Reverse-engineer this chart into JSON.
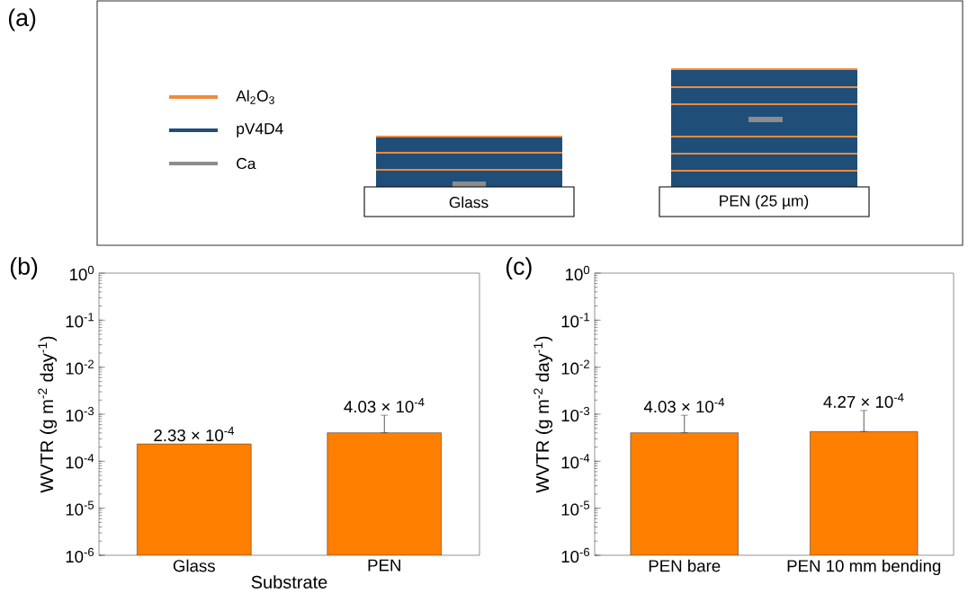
{
  "chart_data": [
    {
      "type": "other",
      "annotations": [
        "(a)",
        "Al$_{2}$O$_{3}$",
        "pV4D4",
        "Ca",
        "Glass",
        "PEN (25 µm)"
      ]
    },
    {
      "type": "bar",
      "title": "(b)",
      "categories": [
        "Glass",
        "PEN"
      ],
      "values": [
        0.000233,
        0.000403
      ],
      "color": "#ff7f00",
      "errors": [
        null,
        [
          0.000403,
          0.00095
        ]
      ],
      "value_labels": [
        "2.33 × 10$^{-4}$",
        "4.03 × 10$^{-4}$"
      ],
      "log": true,
      "ylim": [
        1e-06,
        1
      ],
      "yticks": [
        {
          "value": 1e-06,
          "label": "10$^{-6}$"
        },
        {
          "value": 1e-05,
          "label": "10$^{-5}$"
        },
        {
          "value": 0.0001,
          "label": "10$^{-4}$"
        },
        {
          "value": 0.001,
          "label": "10$^{-3}$"
        },
        {
          "value": 0.01,
          "label": "10$^{-2}$"
        },
        {
          "value": 0.1,
          "label": "10$^{-1}$"
        },
        {
          "value": 1,
          "label": "10$^{0}$"
        }
      ],
      "xlabel": "Substrate",
      "ylabel": "WVTR (g m$^{-2}$ day$^{-1}$)"
    },
    {
      "type": "bar",
      "title": "(c)",
      "categories": [
        "PEN bare",
        "PEN 10 mm bending"
      ],
      "values": [
        0.000403,
        0.000427
      ],
      "color": "#ff7f00",
      "errors": [
        [
          0.000403,
          0.00095
        ],
        [
          0.000427,
          0.0012
        ]
      ],
      "value_labels": [
        "4.03 × 10$^{-4}$",
        "4.27 × 10$^{-4}$"
      ],
      "log": true,
      "ylim": [
        1e-06,
        1
      ],
      "yticks": [
        {
          "value": 1e-06,
          "label": "10$^{-6}$"
        },
        {
          "value": 1e-05,
          "label": "10$^{-5}$"
        },
        {
          "value": 0.0001,
          "label": "10$^{-4}$"
        },
        {
          "value": 0.001,
          "label": "10$^{-3}$"
        },
        {
          "value": 0.01,
          "label": "10$^{-2}$"
        },
        {
          "value": 0.1,
          "label": "10$^{-1}$"
        },
        {
          "value": 1,
          "label": "10$^{0}$"
        }
      ],
      "ylabel": "WVTR (g m$^{-2}$ day$^{-1}$)"
    }
  ]
}
